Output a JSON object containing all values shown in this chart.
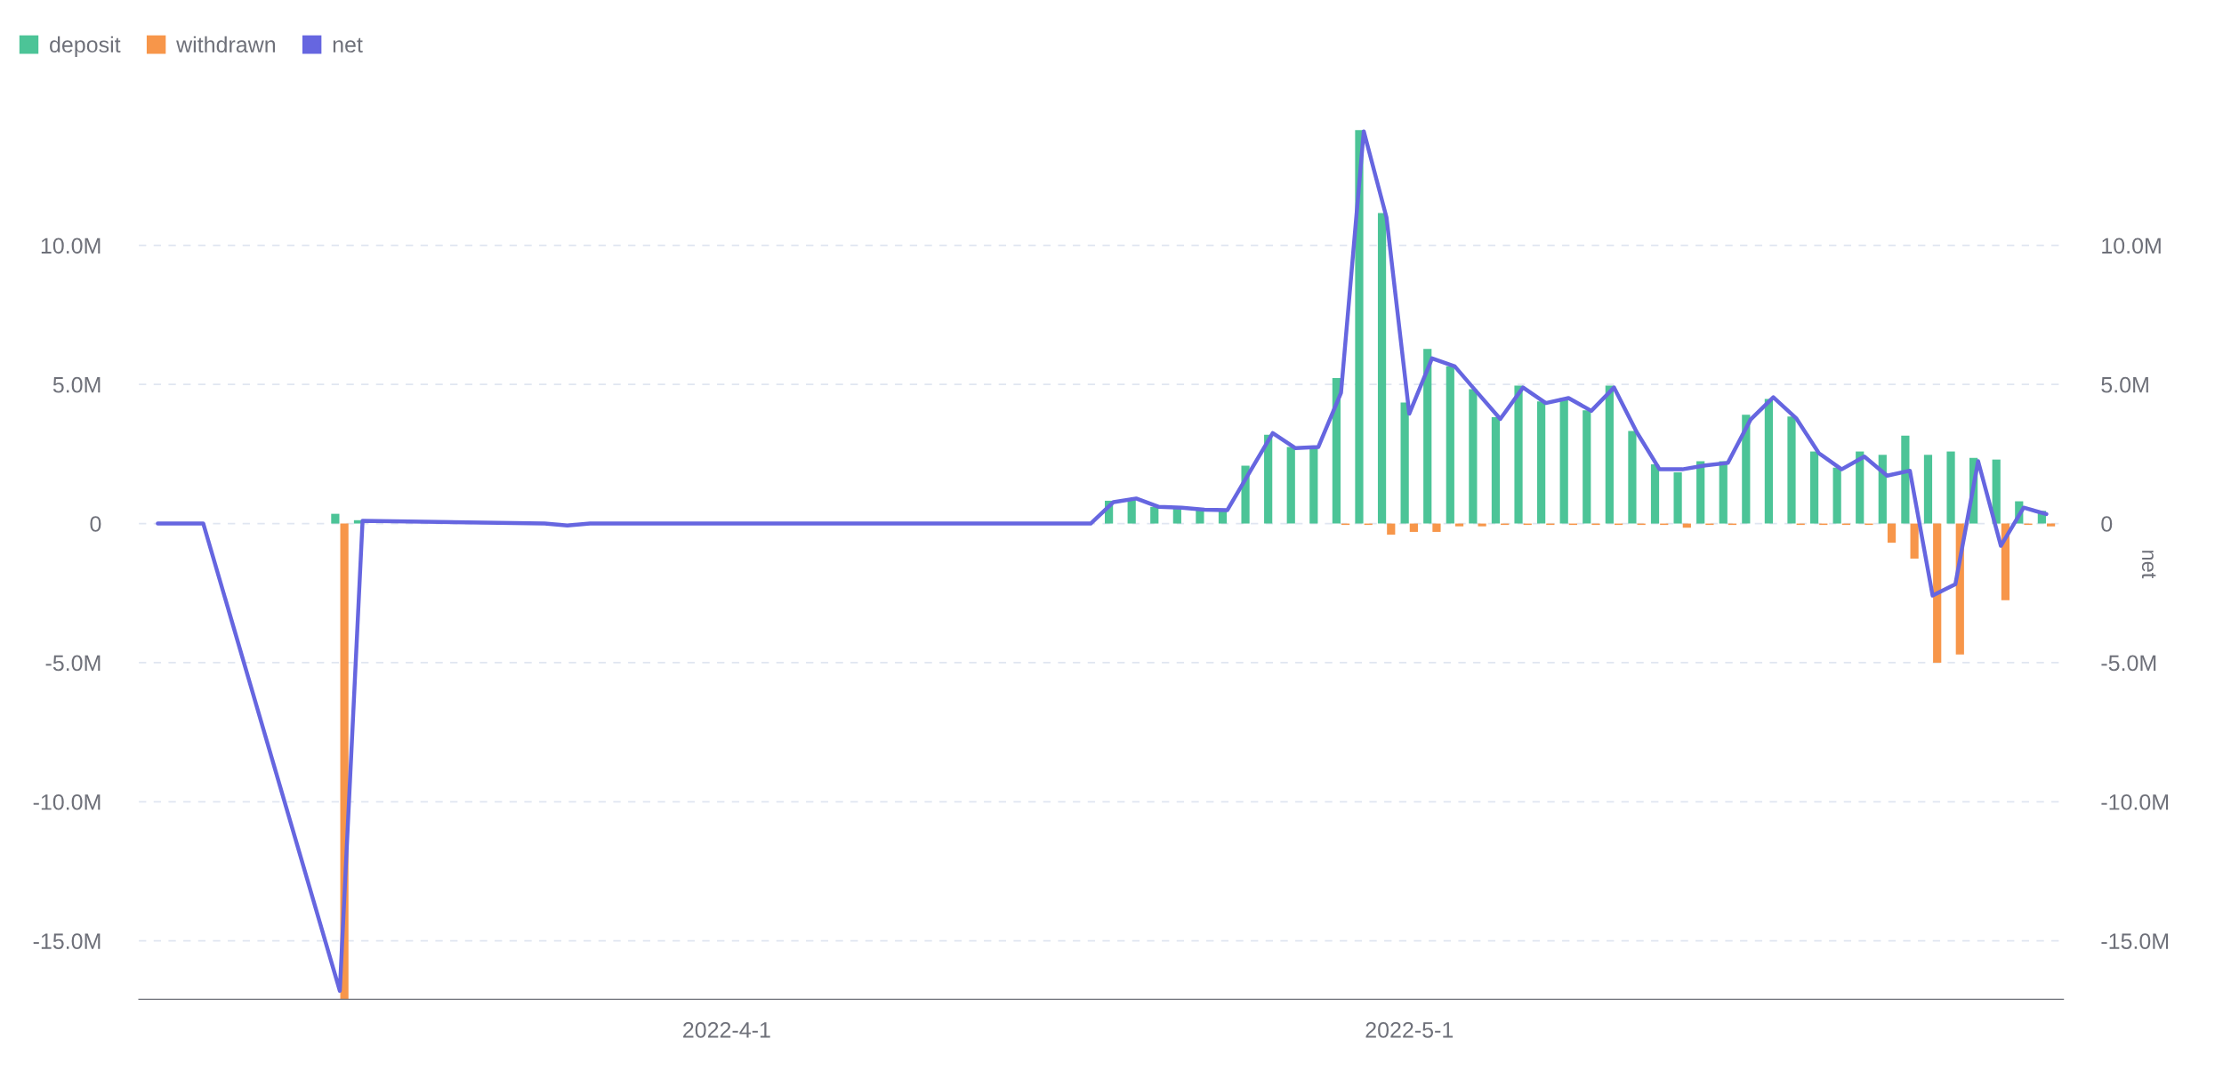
{
  "chart_data": {
    "type": "bar",
    "x": [
      "2022-03-07",
      "2022-03-09",
      "2022-03-15",
      "2022-03-16",
      "2022-03-24",
      "2022-03-25",
      "2022-03-26",
      "2022-04-17",
      "2022-04-18",
      "2022-04-19",
      "2022-04-20",
      "2022-04-21",
      "2022-04-22",
      "2022-04-23",
      "2022-04-24",
      "2022-04-25",
      "2022-04-26",
      "2022-04-27",
      "2022-04-28",
      "2022-04-29",
      "2022-04-30",
      "2022-05-01",
      "2022-05-02",
      "2022-05-03",
      "2022-05-04",
      "2022-05-05",
      "2022-05-06",
      "2022-05-07",
      "2022-05-08",
      "2022-05-09",
      "2022-05-10",
      "2022-05-11",
      "2022-05-12",
      "2022-05-13",
      "2022-05-14",
      "2022-05-15",
      "2022-05-16",
      "2022-05-17",
      "2022-05-18",
      "2022-05-19",
      "2022-05-20",
      "2022-05-21",
      "2022-05-22",
      "2022-05-23",
      "2022-05-24",
      "2022-05-25",
      "2022-05-26",
      "2022-05-27",
      "2022-05-28",
      "2022-05-29"
    ],
    "series": [
      {
        "name": "deposit",
        "color": "#4cc497",
        "values": [
          null,
          null,
          0.35,
          0.12,
          null,
          null,
          null,
          null,
          0.82,
          0.9,
          0.6,
          0.55,
          0.48,
          0.48,
          2.08,
          3.19,
          2.75,
          2.75,
          5.23,
          14.14,
          11.16,
          4.35,
          6.28,
          5.65,
          4.83,
          3.82,
          4.96,
          4.39,
          4.51,
          4.07,
          4.96,
          3.33,
          2.13,
          1.84,
          2.24,
          2.24,
          3.91,
          4.48,
          3.85,
          2.59,
          2.01,
          2.59,
          2.47,
          3.16,
          2.47,
          2.59,
          2.36,
          2.3,
          0.8,
          0.46
        ]
      },
      {
        "name": "withdrawn",
        "color": "#f7964a",
        "values": [
          null,
          null,
          -17.1,
          null,
          null,
          null,
          null,
          null,
          null,
          null,
          null,
          null,
          null,
          null,
          null,
          null,
          null,
          null,
          -0.05,
          -0.05,
          -0.4,
          -0.3,
          -0.3,
          -0.1,
          -0.1,
          -0.05,
          -0.05,
          -0.05,
          -0.05,
          -0.05,
          -0.05,
          -0.05,
          -0.05,
          -0.15,
          -0.05,
          -0.05,
          null,
          null,
          -0.05,
          -0.05,
          -0.05,
          -0.05,
          -0.69,
          -1.26,
          -5.0,
          -4.71,
          null,
          -2.76,
          -0.05,
          -0.1
        ]
      },
      {
        "name": "net",
        "type": "line",
        "axis": "y2",
        "color": "#6666e0",
        "values": [
          0,
          0,
          -16.8,
          0.1,
          0,
          -0.07,
          0,
          0,
          0.77,
          0.9,
          0.6,
          0.57,
          0.5,
          0.48,
          1.87,
          3.25,
          2.71,
          2.75,
          4.7,
          14.1,
          11.0,
          3.95,
          5.94,
          5.65,
          4.7,
          3.76,
          4.89,
          4.33,
          4.51,
          4.05,
          4.89,
          3.28,
          1.95,
          1.95,
          2.09,
          2.18,
          3.74,
          4.54,
          3.79,
          2.53,
          1.95,
          2.41,
          1.72,
          1.9,
          -2.59,
          -2.18,
          2.24,
          -0.8,
          0.57,
          0.34
        ]
      }
    ],
    "xlim": [
      "2022-03-06T04:00",
      "2022-05-29T18:00"
    ],
    "xticks": [
      {
        "value": "2022-04-01",
        "label": "2022-4-1"
      },
      {
        "value": "2022-05-01",
        "label": "2022-5-1"
      }
    ],
    "ylim": [
      -17.1,
      14.2
    ],
    "yticks": [
      {
        "value": -15,
        "label": "-15.0M"
      },
      {
        "value": -10,
        "label": "-10.0M"
      },
      {
        "value": -5,
        "label": "-5.0M"
      },
      0,
      {
        "value": 5,
        "label": "5.0M"
      },
      {
        "value": 10,
        "label": "10.0M"
      }
    ],
    "y2lim": [
      -17.1,
      14.2
    ],
    "y2ticks": [
      {
        "value": -15,
        "label": "-15.0M"
      },
      {
        "value": -10,
        "label": "-10.0M"
      },
      {
        "value": -5,
        "label": "-5.0M"
      },
      0,
      {
        "value": 5,
        "label": "5.0M"
      },
      {
        "value": 10,
        "label": "10.0M"
      }
    ],
    "y2label": "net",
    "grid": "y",
    "legend": "top left",
    "marker": "none",
    "line_style": "solid"
  }
}
